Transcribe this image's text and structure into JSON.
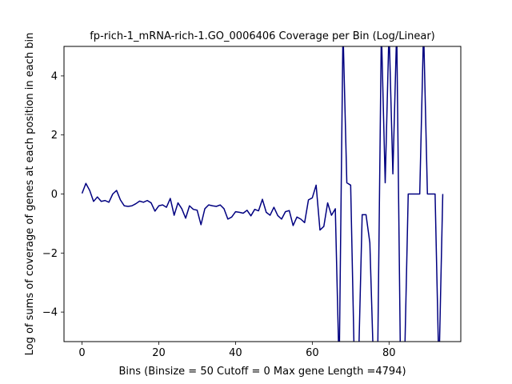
{
  "chart_data": {
    "type": "line",
    "title": "fp-rich-1_mRNA-rich-1.GO_0006406 Coverage per Bin (Log/Linear)",
    "xlabel": "Bins  (Binsize = 50 Cutoff = 0 Max gene Length =4794)",
    "ylabel": "Log of sums of coverage of genes at each position in each bin",
    "xlim": [
      -4.7,
      98.7
    ],
    "ylim": [
      -5,
      5
    ],
    "xticks": [
      0,
      20,
      40,
      60,
      80
    ],
    "yticks": [
      -4,
      -2,
      0,
      2,
      4
    ],
    "xtick_labels": [
      "0",
      "20",
      "40",
      "60",
      "80"
    ],
    "ytick_labels": [
      "−4",
      "−2",
      "0",
      "2",
      "4"
    ],
    "grid": false,
    "legend": "none",
    "line_color": "#000080",
    "series": [
      {
        "x": [
          0,
          1,
          2,
          3,
          4,
          5,
          6,
          7,
          8,
          9,
          10,
          11,
          12,
          13,
          14,
          15,
          16,
          17,
          18,
          19,
          20,
          21,
          22,
          23,
          24,
          25,
          26,
          27,
          28,
          29,
          30,
          31,
          32,
          33,
          34,
          35,
          36,
          37,
          38,
          39,
          40,
          41,
          42,
          43,
          44,
          45,
          46,
          47,
          48,
          49,
          50,
          51,
          52,
          53,
          54,
          55,
          56,
          57,
          58,
          59,
          60,
          61,
          62,
          63,
          64,
          65,
          66,
          67,
          68,
          69,
          70,
          71,
          72,
          73,
          74,
          75,
          76,
          77,
          78,
          79,
          80,
          81,
          82,
          83,
          84,
          85,
          86,
          87,
          88,
          89,
          90,
          91,
          92,
          93,
          94
        ],
        "values": [
          0.02,
          0.36,
          0.12,
          -0.25,
          -0.1,
          -0.25,
          -0.22,
          -0.28,
          0.0,
          0.12,
          -0.2,
          -0.4,
          -0.42,
          -0.4,
          -0.33,
          -0.24,
          -0.28,
          -0.22,
          -0.3,
          -0.58,
          -0.4,
          -0.37,
          -0.45,
          -0.15,
          -0.72,
          -0.3,
          -0.5,
          -0.82,
          -0.4,
          -0.52,
          -0.55,
          -1.04,
          -0.5,
          -0.37,
          -0.4,
          -0.42,
          -0.37,
          -0.5,
          -0.85,
          -0.78,
          -0.6,
          -0.62,
          -0.65,
          -0.55,
          -0.74,
          -0.52,
          -0.57,
          -0.18,
          -0.62,
          -0.72,
          -0.45,
          -0.73,
          -0.85,
          -0.6,
          -0.56,
          -1.07,
          -0.78,
          -0.85,
          -0.97,
          -0.2,
          -0.13,
          0.3,
          -1.22,
          -1.1,
          -0.3,
          -0.72,
          -0.5,
          -6,
          5.6,
          0.38,
          0.3,
          -6,
          -6,
          -0.7,
          -0.7,
          -1.65,
          -6,
          -6,
          5.6,
          0.38,
          5.6,
          0.68,
          5.6,
          -6,
          -6,
          0.0,
          0.0,
          0.0,
          0.0,
          5.6,
          0.0,
          0.0,
          0.0,
          -6,
          0.0
        ]
      }
    ]
  }
}
